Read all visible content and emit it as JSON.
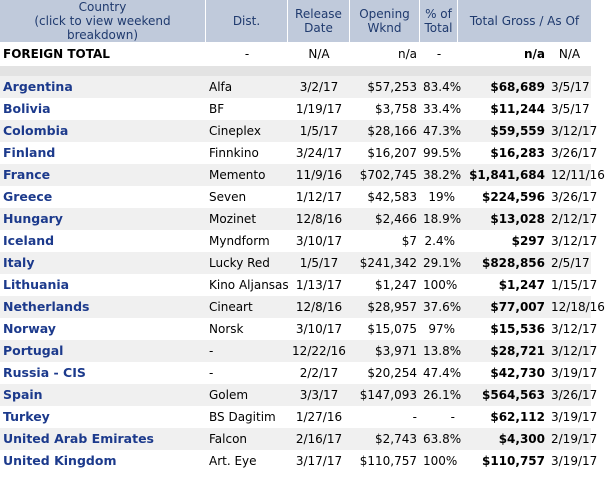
{
  "header": {
    "country_line1": "Country",
    "country_line2": "(click to view weekend breakdown)",
    "dist": "Dist.",
    "release_line1": "Release",
    "release_line2": "Date",
    "opening_line1": "Opening",
    "opening_line2": "Wknd",
    "pct_line1": "% of",
    "pct_line2": "Total",
    "gross": "Total Gross / As Of"
  },
  "total": {
    "country": "FOREIGN TOTAL",
    "dist": "-",
    "release": "N/A",
    "opening": "n/a",
    "pct": "-",
    "gross": "n/a",
    "asof": "N/A"
  },
  "rows": [
    {
      "country": "Argentina",
      "dist": "Alfa",
      "release": "3/2/17",
      "opening": "$57,253",
      "pct": "83.4%",
      "gross": "$68,689",
      "asof": "3/5/17"
    },
    {
      "country": "Bolivia",
      "dist": "BF",
      "release": "1/19/17",
      "opening": "$3,758",
      "pct": "33.4%",
      "gross": "$11,244",
      "asof": "3/5/17"
    },
    {
      "country": "Colombia",
      "dist": "Cineplex",
      "release": "1/5/17",
      "opening": "$28,166",
      "pct": "47.3%",
      "gross": "$59,559",
      "asof": "3/12/17"
    },
    {
      "country": "Finland",
      "dist": "Finnkino",
      "release": "3/24/17",
      "opening": "$16,207",
      "pct": "99.5%",
      "gross": "$16,283",
      "asof": "3/26/17"
    },
    {
      "country": "France",
      "dist": "Memento",
      "release": "11/9/16",
      "opening": "$702,745",
      "pct": "38.2%",
      "gross": "$1,841,684",
      "asof": "12/11/16"
    },
    {
      "country": "Greece",
      "dist": "Seven",
      "release": "1/12/17",
      "opening": "$42,583",
      "pct": "19%",
      "gross": "$224,596",
      "asof": "3/26/17"
    },
    {
      "country": "Hungary",
      "dist": "Mozinet",
      "release": "12/8/16",
      "opening": "$2,466",
      "pct": "18.9%",
      "gross": "$13,028",
      "asof": "2/12/17"
    },
    {
      "country": "Iceland",
      "dist": "Myndform",
      "release": "3/10/17",
      "opening": "$7",
      "pct": "2.4%",
      "gross": "$297",
      "asof": "3/12/17"
    },
    {
      "country": "Italy",
      "dist": "Lucky Red",
      "release": "1/5/17",
      "opening": "$241,342",
      "pct": "29.1%",
      "gross": "$828,856",
      "asof": "2/5/17"
    },
    {
      "country": "Lithuania",
      "dist": "Kino Aljansas",
      "release": "1/13/17",
      "opening": "$1,247",
      "pct": "100%",
      "gross": "$1,247",
      "asof": "1/15/17"
    },
    {
      "country": "Netherlands",
      "dist": "Cineart",
      "release": "12/8/16",
      "opening": "$28,957",
      "pct": "37.6%",
      "gross": "$77,007",
      "asof": "12/18/16"
    },
    {
      "country": "Norway",
      "dist": "Norsk",
      "release": "3/10/17",
      "opening": "$15,075",
      "pct": "97%",
      "gross": "$15,536",
      "asof": "3/12/17"
    },
    {
      "country": "Portugal",
      "dist": "-",
      "release": "12/22/16",
      "opening": "$3,971",
      "pct": "13.8%",
      "gross": "$28,721",
      "asof": "3/12/17"
    },
    {
      "country": "Russia - CIS",
      "dist": "-",
      "release": "2/2/17",
      "opening": "$20,254",
      "pct": "47.4%",
      "gross": "$42,730",
      "asof": "3/19/17"
    },
    {
      "country": "Spain",
      "dist": "Golem",
      "release": "3/3/17",
      "opening": "$147,093",
      "pct": "26.1%",
      "gross": "$564,563",
      "asof": "3/26/17"
    },
    {
      "country": "Turkey",
      "dist": "BS Dagitim",
      "release": "1/27/16",
      "opening": "-",
      "pct": "-",
      "gross": "$62,112",
      "asof": "3/19/17"
    },
    {
      "country": "United Arab Emirates",
      "dist": "Falcon",
      "release": "2/16/17",
      "opening": "$2,743",
      "pct": "63.8%",
      "gross": "$4,300",
      "asof": "2/19/17"
    },
    {
      "country": "United Kingdom",
      "dist": "Art. Eye",
      "release": "3/17/17",
      "opening": "$110,757",
      "pct": "100%",
      "gross": "$110,757",
      "asof": "3/19/17"
    }
  ]
}
